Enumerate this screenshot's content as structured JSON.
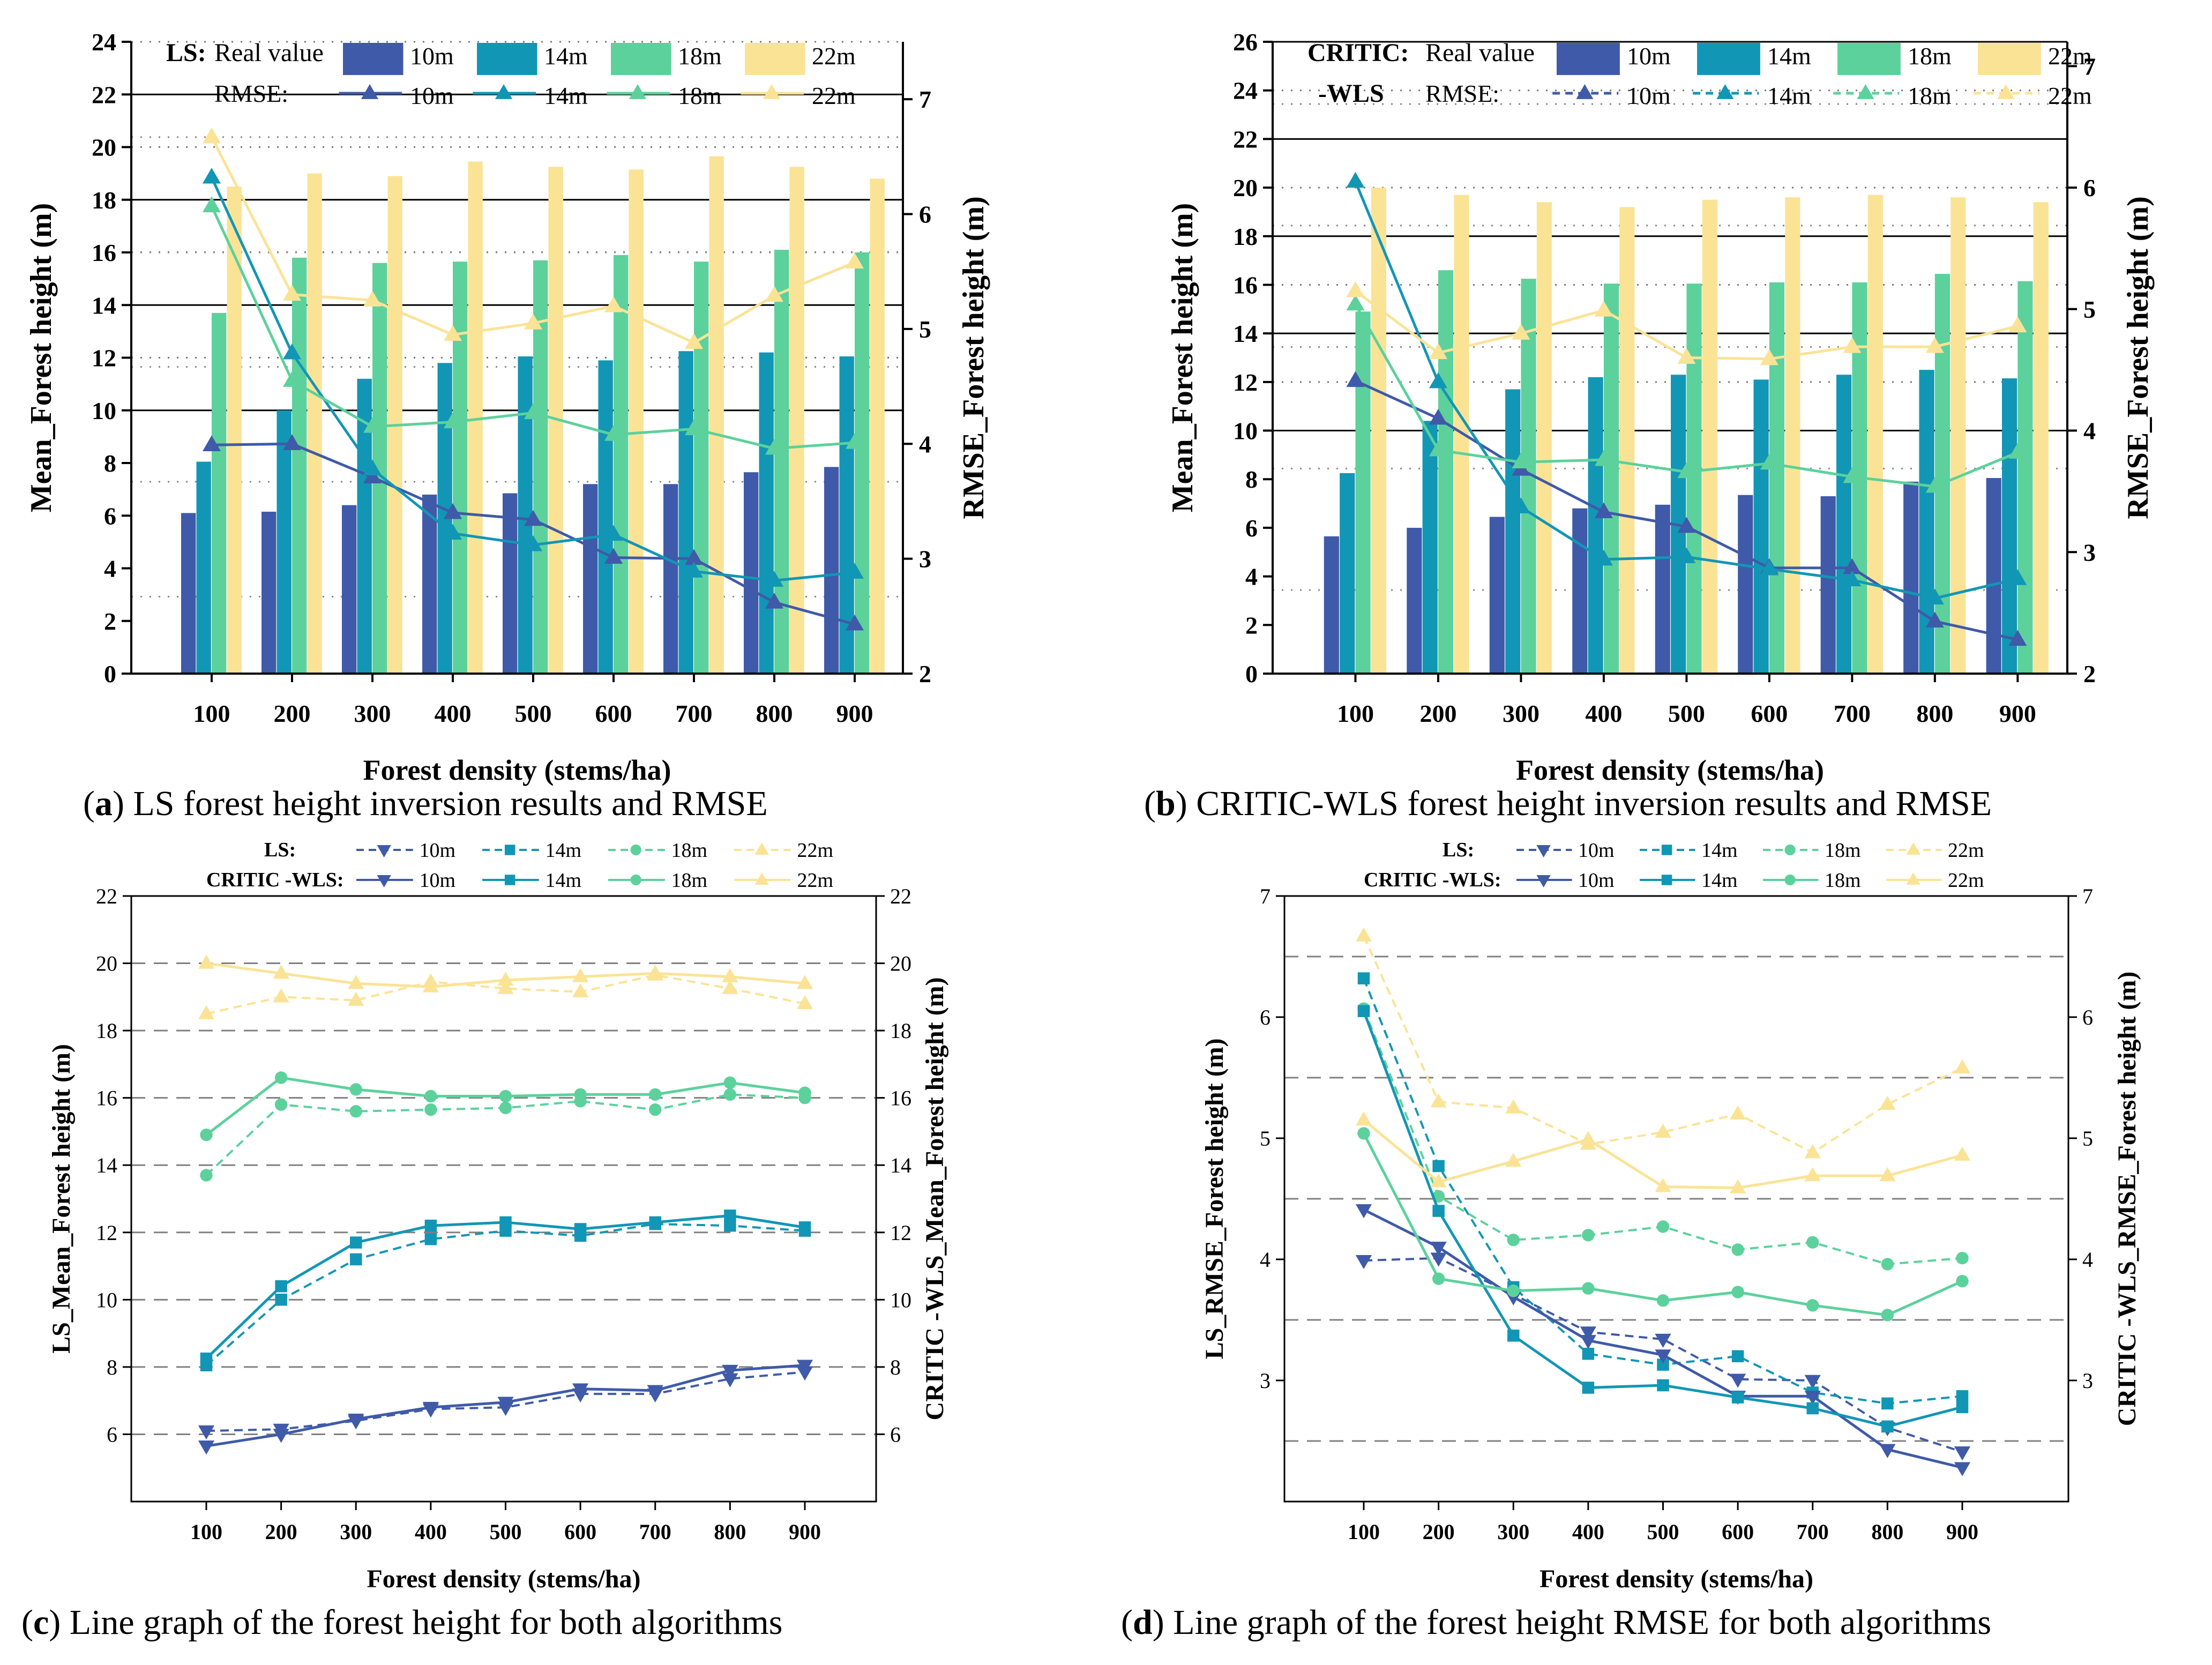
{
  "colors": {
    "c10": "#3f5aa8",
    "c14": "#1296b5",
    "c18": "#5cd19c",
    "c22": "#fbe396"
  },
  "captions": [
    {
      "letter": "a",
      "text": " LS forest height inversion results and RMSE"
    },
    {
      "letter": "b",
      "text": " CRITIC-WLS forest height inversion results and RMSE"
    },
    {
      "letter": "c",
      "text": " Line graph of the forest height for both algorithms"
    },
    {
      "letter": "d",
      "text": " Line graph of the forest height RMSE for both algorithms"
    }
  ],
  "chart_data": [
    {
      "id": "a",
      "type": "bar+line",
      "categories": [
        "100",
        "200",
        "300",
        "400",
        "500",
        "600",
        "700",
        "800",
        "900"
      ],
      "xlabel": "Forest density (stems/ha)",
      "ylabel": "Mean_Forest height (m)",
      "ylabel2": "RMSE_Forest height (m)",
      "ylim": [
        0,
        24
      ],
      "yticks": [
        0,
        2,
        4,
        6,
        8,
        10,
        12,
        14,
        16,
        18,
        20,
        22,
        24
      ],
      "y2lim": [
        2,
        7.5
      ],
      "y2ticks": [
        2,
        3,
        4,
        5,
        6,
        7
      ],
      "legend": {
        "algo": "LS:",
        "algo2": "",
        "real": "Real value",
        "rmse": "RMSE:"
      },
      "series_names": [
        "10m",
        "14m",
        "18m",
        "22m"
      ],
      "bars": [
        [
          6.1,
          6.15,
          6.4,
          6.8,
          6.85,
          7.2,
          7.2,
          7.65,
          7.85
        ],
        [
          8.05,
          10.0,
          11.2,
          11.8,
          12.05,
          11.9,
          12.25,
          12.2,
          12.05
        ],
        [
          13.7,
          15.8,
          15.6,
          15.65,
          15.7,
          15.9,
          15.65,
          16.1,
          16.0
        ],
        [
          18.5,
          19.0,
          18.9,
          19.45,
          19.25,
          19.15,
          19.65,
          19.25,
          18.8
        ]
      ],
      "rmse": [
        [
          3.99,
          4.0,
          3.71,
          3.4,
          3.34,
          3.01,
          3.0,
          2.62,
          2.43
        ],
        [
          6.32,
          4.79,
          3.78,
          3.22,
          3.12,
          3.21,
          2.89,
          2.81,
          2.88
        ],
        [
          6.07,
          4.55,
          4.15,
          4.19,
          4.27,
          4.08,
          4.13,
          3.96,
          4.01
        ],
        [
          6.67,
          5.3,
          5.25,
          4.95,
          5.05,
          5.2,
          4.88,
          5.29,
          5.58
        ]
      ]
    },
    {
      "id": "b",
      "type": "bar+line",
      "categories": [
        "100",
        "200",
        "300",
        "400",
        "500",
        "600",
        "700",
        "800",
        "900"
      ],
      "xlabel": "Forest density (stems/ha)",
      "ylabel": "Mean_Forest height (m)",
      "ylabel2": "RMSE_Forest height (m)",
      "ylim": [
        0,
        26
      ],
      "yticks": [
        0,
        2,
        4,
        6,
        8,
        10,
        12,
        14,
        16,
        18,
        20,
        22,
        24,
        26
      ],
      "y2lim": [
        2,
        7.2
      ],
      "y2ticks": [
        2,
        3,
        4,
        5,
        6,
        7
      ],
      "legend": {
        "algo": "CRITIC:",
        "algo2": "-WLS",
        "real": "Real value",
        "rmse": "RMSE:"
      },
      "series_names": [
        "10m",
        "14m",
        "18m",
        "22m"
      ],
      "bars": [
        [
          5.65,
          6.0,
          6.45,
          6.8,
          6.95,
          7.35,
          7.3,
          7.9,
          8.05
        ],
        [
          8.25,
          10.4,
          11.7,
          12.2,
          12.3,
          12.1,
          12.3,
          12.5,
          12.15
        ],
        [
          14.9,
          16.6,
          16.25,
          16.05,
          16.05,
          16.1,
          16.1,
          16.45,
          16.15
        ],
        [
          20.0,
          19.7,
          19.4,
          19.2,
          19.5,
          19.6,
          19.7,
          19.6,
          19.4
        ]
      ],
      "rmse": [
        [
          4.41,
          4.1,
          3.68,
          3.33,
          3.21,
          2.87,
          2.87,
          2.43,
          2.28
        ],
        [
          6.05,
          4.4,
          3.37,
          2.94,
          2.96,
          2.86,
          2.77,
          2.62,
          2.78
        ],
        [
          5.04,
          3.84,
          3.74,
          3.76,
          3.66,
          3.73,
          3.62,
          3.54,
          3.82
        ],
        [
          5.15,
          4.64,
          4.8,
          4.99,
          4.6,
          4.59,
          4.69,
          4.69,
          4.86
        ]
      ]
    },
    {
      "id": "c",
      "type": "line",
      "categories": [
        "100",
        "200",
        "300",
        "400",
        "500",
        "600",
        "700",
        "800",
        "900"
      ],
      "xlabel": "Forest density (stems/ha)",
      "ylabel": "LS_Mean_Forest height (m)",
      "ylabel2": "CRITIC -WLS_Mean_Forest height (m)",
      "ylim": [
        4,
        22
      ],
      "yticks": [
        6,
        8,
        10,
        12,
        14,
        16,
        18,
        20,
        22
      ],
      "y2lim": [
        4,
        22
      ],
      "y2ticks": [
        6,
        8,
        10,
        12,
        14,
        16,
        18,
        20,
        22
      ],
      "gridlines": [
        6,
        8,
        10,
        12,
        14,
        16,
        18,
        20
      ],
      "legend": {
        "ls": "LS:",
        "critic": "CRITIC -WLS:"
      },
      "series_names": [
        "10m",
        "14m",
        "18m",
        "22m"
      ],
      "ls": [
        [
          6.1,
          6.15,
          6.4,
          6.75,
          6.8,
          7.2,
          7.2,
          7.65,
          7.85
        ],
        [
          8.05,
          10.0,
          11.2,
          11.8,
          12.05,
          11.9,
          12.25,
          12.2,
          12.05
        ],
        [
          13.7,
          15.8,
          15.6,
          15.65,
          15.7,
          15.9,
          15.65,
          16.1,
          16.0
        ],
        [
          18.5,
          19.0,
          18.9,
          19.45,
          19.25,
          19.15,
          19.65,
          19.25,
          18.8
        ]
      ],
      "critic": [
        [
          5.65,
          6.0,
          6.45,
          6.8,
          6.95,
          7.35,
          7.3,
          7.9,
          8.05
        ],
        [
          8.25,
          10.4,
          11.7,
          12.2,
          12.3,
          12.1,
          12.3,
          12.5,
          12.15
        ],
        [
          14.9,
          16.6,
          16.25,
          16.05,
          16.05,
          16.1,
          16.1,
          16.45,
          16.15
        ],
        [
          20.0,
          19.7,
          19.4,
          19.3,
          19.5,
          19.6,
          19.7,
          19.6,
          19.4
        ]
      ]
    },
    {
      "id": "d",
      "type": "line",
      "categories": [
        "100",
        "200",
        "300",
        "400",
        "500",
        "600",
        "700",
        "800",
        "900"
      ],
      "xlabel": "Forest density (stems/ha)",
      "ylabel": "LS_RMSE_Forest height (m)",
      "ylabel2": "CRITIC -WLS_RMSE_Forest height (m)",
      "ylim": [
        2,
        7
      ],
      "yticks": [
        3,
        4,
        5,
        6,
        7
      ],
      "y2lim": [
        2,
        7
      ],
      "y2ticks": [
        3,
        4,
        5,
        6,
        7
      ],
      "gridlines": [
        2.5,
        3.5,
        4.5,
        5.5,
        6.5
      ],
      "legend": {
        "ls": "LS:",
        "critic": "CRITIC -WLS:"
      },
      "series_names": [
        "10m",
        "14m",
        "18m",
        "22m"
      ],
      "ls": [
        [
          3.99,
          4.01,
          3.71,
          3.4,
          3.34,
          3.01,
          3.0,
          2.61,
          2.41
        ],
        [
          6.32,
          4.77,
          3.77,
          3.22,
          3.13,
          3.2,
          2.9,
          2.81,
          2.87
        ],
        [
          6.07,
          4.52,
          4.16,
          4.2,
          4.27,
          4.08,
          4.14,
          3.96,
          4.01
        ],
        [
          6.67,
          5.3,
          5.25,
          4.95,
          5.05,
          5.2,
          4.88,
          5.28,
          5.58
        ]
      ],
      "critic": [
        [
          4.41,
          4.1,
          3.69,
          3.33,
          3.21,
          2.87,
          2.87,
          2.43,
          2.28
        ],
        [
          6.05,
          4.4,
          3.37,
          2.94,
          2.96,
          2.86,
          2.77,
          2.62,
          2.78
        ],
        [
          5.04,
          3.84,
          3.74,
          3.76,
          3.66,
          3.73,
          3.62,
          3.54,
          3.82
        ],
        [
          5.15,
          4.64,
          4.81,
          4.99,
          4.6,
          4.59,
          4.69,
          4.69,
          4.86
        ]
      ]
    }
  ]
}
